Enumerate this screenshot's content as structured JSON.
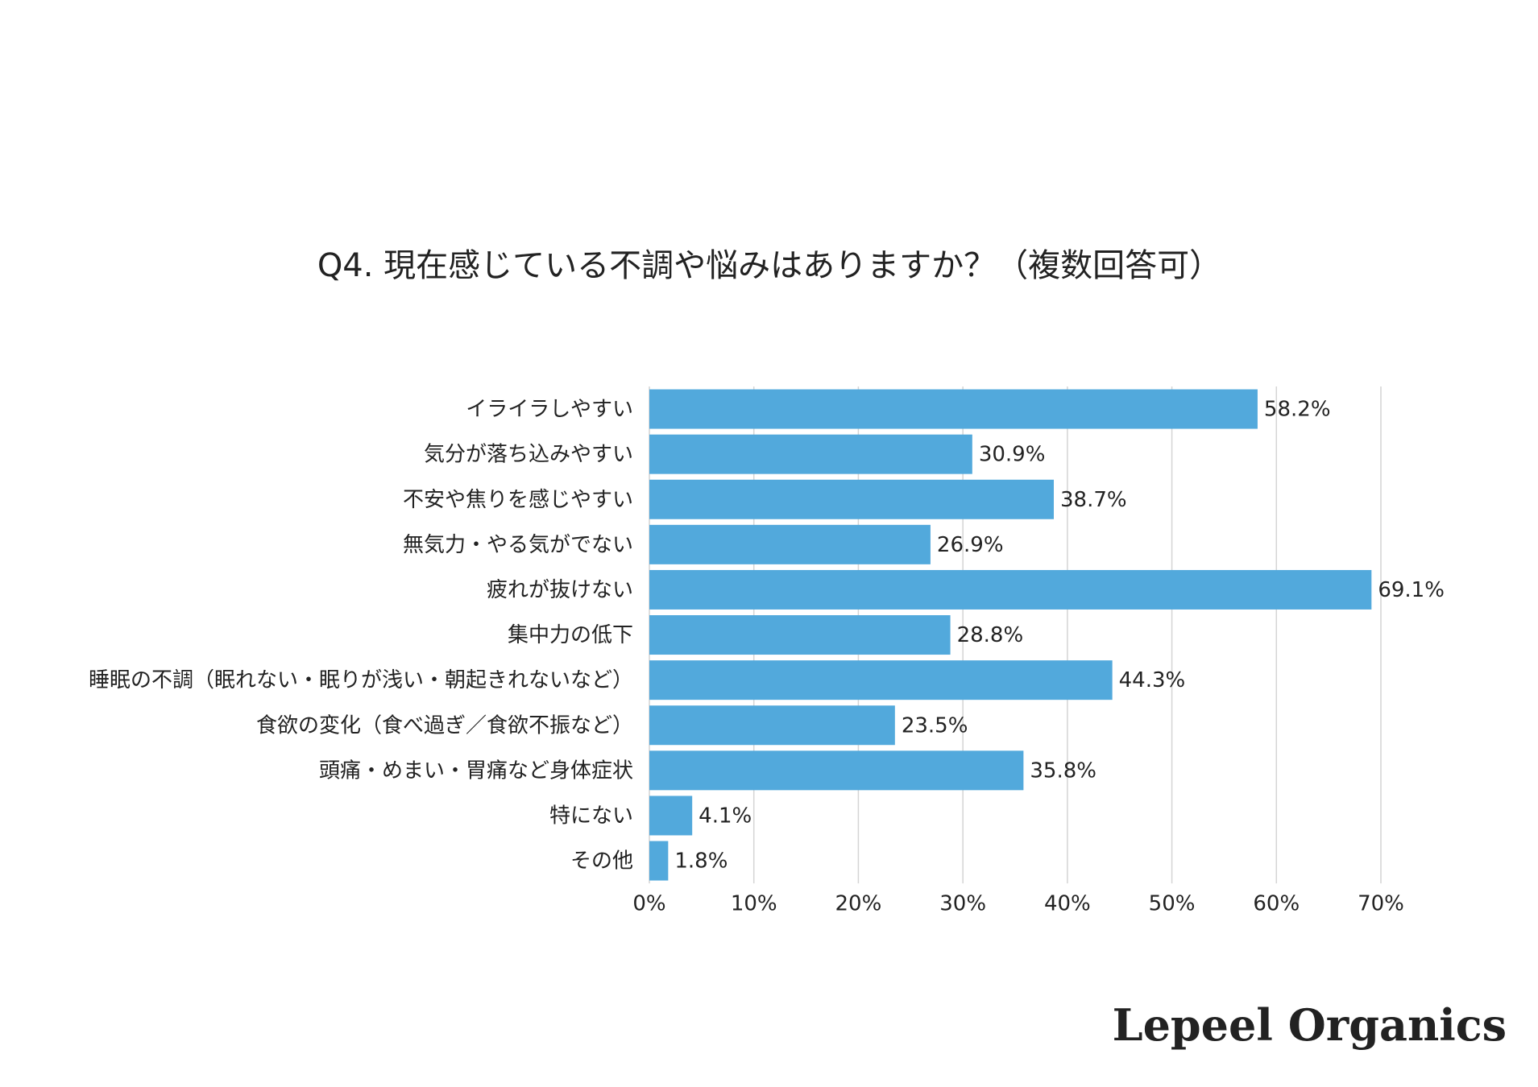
{
  "chart_data": {
    "type": "bar",
    "orientation": "horizontal",
    "title": "Q4. 現在感じている不調や悩みはありますか？（複数回答可）",
    "categories": [
      "イライラしやすい",
      "気分が落ち込みやすい",
      "不安や焦りを感じやすい",
      "無気力・やる気がでない",
      "疲れが抜けない",
      "集中力の低下",
      "睡眠の不調（眠れない・眠りが浅い・朝起きれないなど）",
      "食欲の変化（食べ過ぎ／食欲不振など）",
      "頭痛・めまい・胃痛など身体症状",
      "特にない",
      "その他"
    ],
    "values": [
      58.2,
      30.9,
      38.7,
      26.9,
      69.1,
      28.8,
      44.3,
      23.5,
      35.8,
      4.1,
      1.8
    ],
    "value_labels": [
      "58.2%",
      "30.9%",
      "38.7%",
      "26.9%",
      "69.1%",
      "28.8%",
      "44.3%",
      "23.5%",
      "35.8%",
      "4.1%",
      "1.8%"
    ],
    "color": "#52a9dc",
    "xlim": [
      0,
      70
    ],
    "xticks": [
      {
        "value": 0,
        "label": "0%"
      },
      {
        "value": 10,
        "label": "10%"
      },
      {
        "value": 20,
        "label": "20%"
      },
      {
        "value": 30,
        "label": "30%"
      },
      {
        "value": 40,
        "label": "40%"
      },
      {
        "value": 50,
        "label": "50%"
      },
      {
        "value": 60,
        "label": "60%"
      },
      {
        "value": 70,
        "label": "70%"
      }
    ],
    "grid": true
  },
  "brand": "Lepeel Organics"
}
